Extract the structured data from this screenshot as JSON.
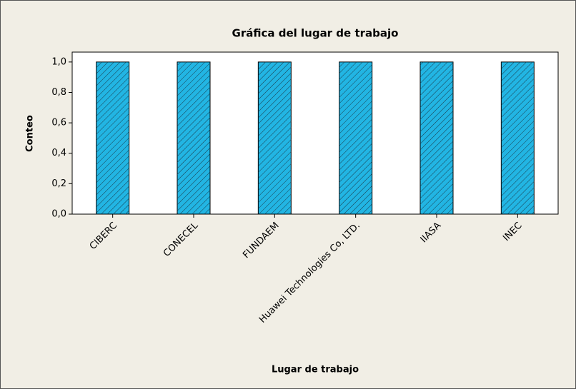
{
  "chart_data": {
    "type": "bar",
    "title": "Gráfica del lugar de trabajo",
    "xlabel": "Lugar de trabajo",
    "ylabel": "Conteo",
    "categories": [
      "CIBERC",
      "CONECEL",
      "FUNDAEM",
      "Huawei Technologies Co, LTD.",
      "IIASA",
      "INEC"
    ],
    "values": [
      1,
      1,
      1,
      1,
      1,
      1
    ],
    "color": "#22b5e3",
    "ylim": [
      0,
      1.065
    ],
    "yticks": [
      {
        "value": 0,
        "label": "0,0"
      },
      {
        "value": 0.2,
        "label": "0,2"
      },
      {
        "value": 0.4,
        "label": "0,4"
      },
      {
        "value": 0.6,
        "label": "0,6"
      },
      {
        "value": 0.8,
        "label": "0,8"
      },
      {
        "value": 1,
        "label": "1,0"
      }
    ],
    "grid": false
  }
}
